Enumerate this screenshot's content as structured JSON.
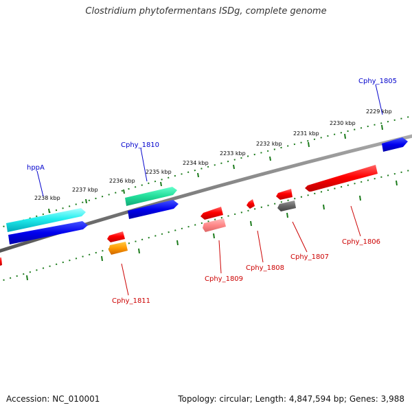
{
  "header": {
    "title": "Clostridium phytofermentans ISDg, complete genome"
  },
  "footer": {
    "accession": "Accession: NC_010001",
    "topology": "Topology: circular; Length: 4,847,594 bp; Genes: 3,988"
  },
  "ruler": {
    "tick_labels": [
      "2229 kbp",
      "2230 kbp",
      "2231 kbp",
      "2232 kbp",
      "2233 kbp",
      "2234 kbp",
      "2235 kbp",
      "2236 kbp",
      "2237 kbp",
      "2238 kbp"
    ]
  },
  "genes": {
    "forward_labels": [
      "Cphy_1805",
      "Cphy_1810",
      "hppA"
    ],
    "reverse_labels": [
      "Cphy_1806",
      "Cphy_1807",
      "Cphy_1808",
      "Cphy_1809",
      "Cphy_1811"
    ]
  },
  "colors": {
    "forward_label": "#0000cc",
    "reverse_label": "#cc0000",
    "backbone": "#808080",
    "tick": "#1a7a1a"
  }
}
